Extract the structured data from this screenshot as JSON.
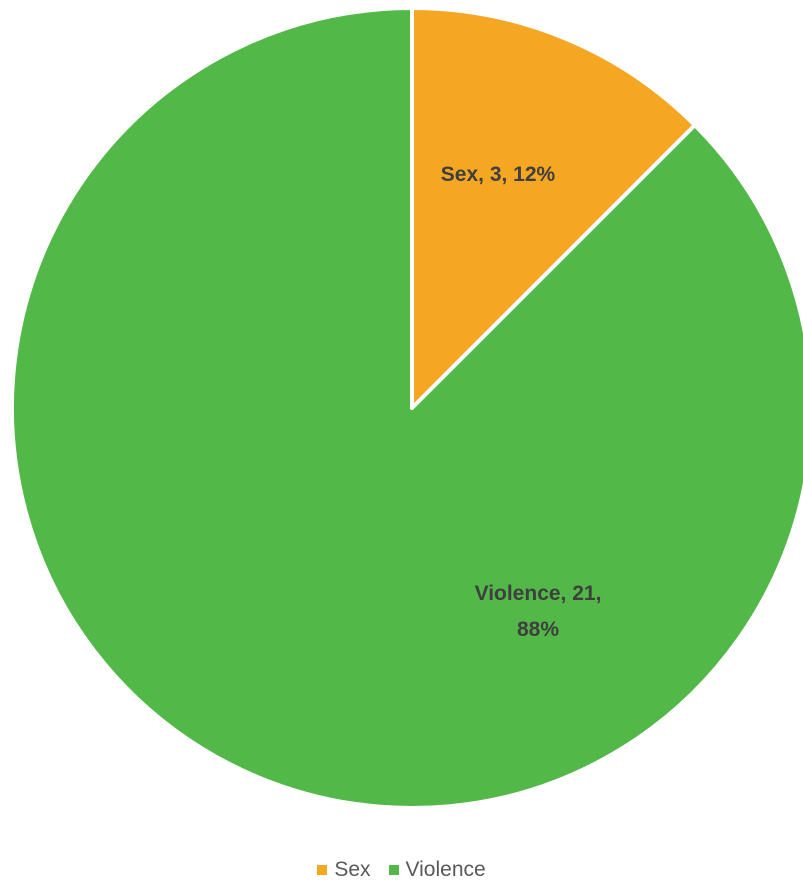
{
  "chart_data": {
    "type": "pie",
    "title": "",
    "categories": [
      "Sex",
      "Violence"
    ],
    "values": [
      3,
      21
    ],
    "percentages": [
      "12%",
      "88%"
    ],
    "colors": [
      "#F5A623",
      "#52B848"
    ],
    "data_labels": [
      "Sex, 3, 12%",
      "Violence, 21, 88%"
    ],
    "legend": {
      "placement": "bottom",
      "entries": [
        "Sex",
        "Violence"
      ]
    },
    "start_angle": "12 o'clock",
    "direction": "clockwise"
  }
}
